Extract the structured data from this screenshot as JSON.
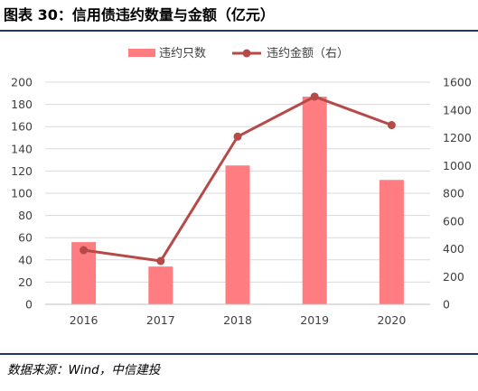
{
  "figure": {
    "title": "图表 30：信用债违约数量与金额（亿元）",
    "source": "数据来源：Wind，中信建投"
  },
  "colors": {
    "bar": "#ff7c80",
    "line": "#b54a48",
    "grid": "#d9d9d9",
    "rule": "#1f3864"
  },
  "chart_data": {
    "type": "bar",
    "title": "",
    "categories": [
      "2016",
      "2017",
      "2018",
      "2019",
      "2020"
    ],
    "series": [
      {
        "name": "违约只数",
        "type": "bar",
        "axis": "left",
        "values": [
          56,
          34,
          125,
          187,
          112
        ]
      },
      {
        "name": "违约金额（右）",
        "type": "line",
        "axis": "right",
        "values": [
          390,
          312,
          1208,
          1496,
          1291
        ]
      }
    ],
    "y_left": {
      "min": 0,
      "max": 200,
      "step": 20,
      "ticks": [
        "0",
        "20",
        "40",
        "60",
        "80",
        "100",
        "120",
        "140",
        "160",
        "180",
        "200"
      ]
    },
    "y_right": {
      "min": 0,
      "max": 1600,
      "step": 200,
      "ticks": [
        "0",
        "200",
        "400",
        "600",
        "800",
        "1000",
        "1200",
        "1400",
        "1600"
      ]
    },
    "grid": true,
    "legend": "top"
  }
}
